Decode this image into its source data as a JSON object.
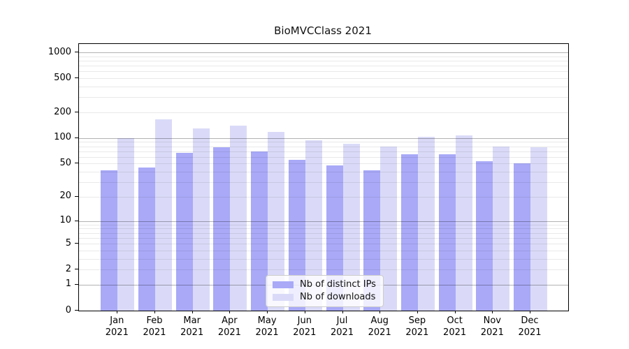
{
  "figure": {
    "title": "BioMVCClass 2021"
  },
  "legend": {
    "items": [
      {
        "label": "Nb of distinct IPs",
        "color": "#a9a9f8"
      },
      {
        "label": "Nb of downloads",
        "color": "#dadaf8"
      }
    ]
  },
  "chart_data": {
    "type": "bar",
    "title": "BioMVCClass 2021",
    "categories": [
      "Jan 2021",
      "Feb 2021",
      "Mar 2021",
      "Apr 2021",
      "May 2021",
      "Jun 2021",
      "Jul 2021",
      "Aug 2021",
      "Sep 2021",
      "Oct 2021",
      "Nov 2021",
      "Dec 2021"
    ],
    "series": [
      {
        "name": "Nb of distinct IPs",
        "color": "#a9a9f8",
        "values": [
          42,
          45,
          67,
          78,
          70,
          55,
          48,
          42,
          64,
          64,
          53,
          50
        ]
      },
      {
        "name": "Nb of downloads",
        "color": "#dadaf8",
        "values": [
          100,
          165,
          130,
          140,
          118,
          95,
          85,
          80,
          103,
          108,
          80,
          78
        ]
      }
    ],
    "xlabel": "",
    "ylabel": "",
    "yscale": "log1p",
    "yticks": [
      0,
      1,
      2,
      5,
      10,
      20,
      50,
      100,
      200,
      500,
      1000
    ],
    "major_gridlines": [
      1,
      10,
      100,
      1000
    ],
    "minor_gridlines": [
      2,
      3,
      4,
      5,
      6,
      7,
      8,
      9,
      20,
      30,
      40,
      50,
      60,
      70,
      80,
      90,
      200,
      300,
      400,
      500,
      600,
      700,
      800,
      900
    ],
    "ylim": [
      0,
      1250
    ],
    "grid": true,
    "grid_above_bars": true,
    "legend_position": "lower center"
  }
}
